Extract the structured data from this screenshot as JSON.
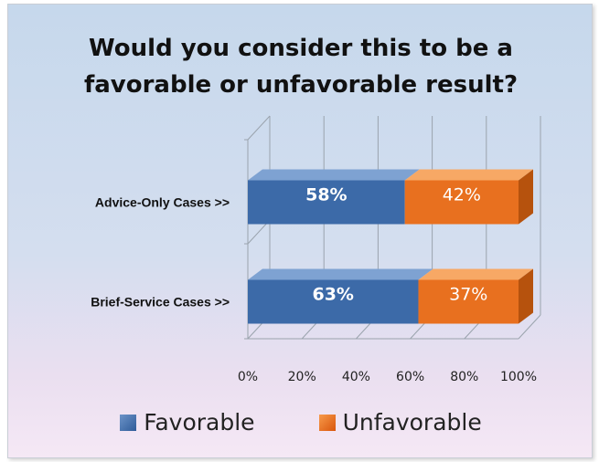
{
  "title_lines": [
    "Would you consider this to be a",
    "favorable or unfavorable result?"
  ],
  "colors": {
    "favorable_front": "#3c6aa8",
    "favorable_top": "#7ea2d2",
    "favorable_side": "#2c5088",
    "unfavorable_front": "#e8701f",
    "unfavorable_top": "#f7a865",
    "unfavorable_side": "#b6520d",
    "grid": "#9aa3ad"
  },
  "chart_data": {
    "type": "bar",
    "orientation": "horizontal",
    "stacked": true,
    "percent_stacked": true,
    "three_d": true,
    "categories": [
      "Advice-Only Cases >>",
      "Brief-Service Cases >>"
    ],
    "series": [
      {
        "name": "Favorable",
        "values": [
          58,
          63
        ],
        "labels": [
          "58%",
          "63%"
        ]
      },
      {
        "name": "Unfavorable",
        "values": [
          42,
          37
        ],
        "labels": [
          "42%",
          "37%"
        ]
      }
    ],
    "x_ticks": [
      "0%",
      "20%",
      "40%",
      "60%",
      "80%",
      "100%"
    ],
    "xlim": [
      0,
      100
    ],
    "grid": true,
    "legend_position": "bottom"
  }
}
